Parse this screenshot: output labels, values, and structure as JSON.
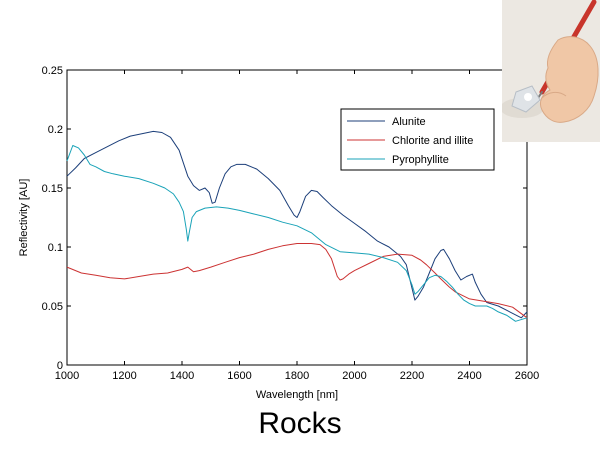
{
  "caption": "Rocks",
  "photo": {
    "icon": "hand-holding-pen-icon",
    "colors": {
      "background": "#ece8e2",
      "skin": "#f0c7a6",
      "pen": "#c8352b",
      "sample": "#dfe3e7"
    }
  },
  "chart_data": {
    "type": "line",
    "title": "",
    "xlabel": "Wavelength [nm]",
    "ylabel": "Reflectivity [AU]",
    "xlim": [
      1000,
      2600
    ],
    "ylim": [
      0,
      0.25
    ],
    "xticks": [
      1000,
      1200,
      1400,
      1600,
      1800,
      2000,
      2200,
      2400,
      2600
    ],
    "yticks": [
      0,
      0.05,
      0.1,
      0.15,
      0.2,
      0.25
    ],
    "yticklabels": [
      "0",
      "0.05",
      "0.1",
      "0.15",
      "0.2",
      "0.25"
    ],
    "grid": false,
    "legend_position": "top-right",
    "series": [
      {
        "name": "Alunite",
        "color": "#1c3f7a",
        "x": [
          1000,
          1030,
          1060,
          1100,
          1140,
          1180,
          1220,
          1260,
          1300,
          1330,
          1360,
          1390,
          1420,
          1440,
          1460,
          1480,
          1495,
          1505,
          1515,
          1530,
          1550,
          1570,
          1590,
          1620,
          1660,
          1700,
          1740,
          1770,
          1790,
          1800,
          1810,
          1830,
          1850,
          1870,
          1890,
          1920,
          1960,
          2000,
          2040,
          2080,
          2120,
          2160,
          2180,
          2200,
          2210,
          2220,
          2240,
          2260,
          2280,
          2300,
          2310,
          2330,
          2350,
          2370,
          2390,
          2410,
          2420,
          2440,
          2460,
          2500,
          2540,
          2580,
          2600
        ],
        "y": [
          0.16,
          0.167,
          0.175,
          0.18,
          0.185,
          0.19,
          0.194,
          0.196,
          0.198,
          0.197,
          0.193,
          0.182,
          0.16,
          0.152,
          0.148,
          0.15,
          0.146,
          0.137,
          0.138,
          0.15,
          0.162,
          0.168,
          0.17,
          0.17,
          0.166,
          0.158,
          0.148,
          0.135,
          0.127,
          0.125,
          0.13,
          0.143,
          0.148,
          0.147,
          0.142,
          0.135,
          0.127,
          0.12,
          0.113,
          0.105,
          0.1,
          0.092,
          0.085,
          0.065,
          0.055,
          0.058,
          0.066,
          0.078,
          0.09,
          0.097,
          0.098,
          0.09,
          0.08,
          0.072,
          0.075,
          0.077,
          0.07,
          0.06,
          0.053,
          0.05,
          0.045,
          0.04,
          0.045
        ]
      },
      {
        "name": "Chlorite and illite",
        "color": "#cc3333",
        "x": [
          1000,
          1050,
          1100,
          1150,
          1200,
          1250,
          1300,
          1350,
          1400,
          1420,
          1440,
          1460,
          1500,
          1550,
          1600,
          1650,
          1700,
          1750,
          1800,
          1850,
          1880,
          1900,
          1920,
          1940,
          1950,
          1960,
          1980,
          2000,
          2050,
          2100,
          2150,
          2200,
          2230,
          2250,
          2280,
          2300,
          2330,
          2350,
          2400,
          2450,
          2500,
          2550,
          2600
        ],
        "y": [
          0.083,
          0.078,
          0.076,
          0.074,
          0.073,
          0.075,
          0.077,
          0.078,
          0.081,
          0.083,
          0.079,
          0.08,
          0.083,
          0.087,
          0.091,
          0.094,
          0.098,
          0.101,
          0.103,
          0.103,
          0.102,
          0.098,
          0.09,
          0.075,
          0.072,
          0.073,
          0.077,
          0.08,
          0.086,
          0.092,
          0.094,
          0.093,
          0.089,
          0.085,
          0.078,
          0.073,
          0.066,
          0.062,
          0.056,
          0.054,
          0.052,
          0.049,
          0.04
        ]
      },
      {
        "name": "Pyrophyllite",
        "color": "#1aa3b8",
        "x": [
          1000,
          1020,
          1040,
          1060,
          1080,
          1100,
          1130,
          1160,
          1200,
          1250,
          1300,
          1340,
          1370,
          1390,
          1405,
          1415,
          1420,
          1425,
          1435,
          1450,
          1480,
          1520,
          1560,
          1600,
          1650,
          1700,
          1750,
          1800,
          1850,
          1900,
          1950,
          2000,
          2050,
          2100,
          2150,
          2180,
          2200,
          2210,
          2220,
          2240,
          2260,
          2280,
          2300,
          2320,
          2340,
          2360,
          2380,
          2400,
          2420,
          2440,
          2460,
          2480,
          2500,
          2530,
          2560,
          2600
        ],
        "y": [
          0.173,
          0.186,
          0.184,
          0.178,
          0.17,
          0.168,
          0.164,
          0.162,
          0.16,
          0.158,
          0.154,
          0.15,
          0.145,
          0.138,
          0.13,
          0.115,
          0.105,
          0.112,
          0.125,
          0.13,
          0.133,
          0.134,
          0.133,
          0.131,
          0.128,
          0.125,
          0.121,
          0.118,
          0.112,
          0.102,
          0.096,
          0.095,
          0.094,
          0.091,
          0.087,
          0.08,
          0.068,
          0.06,
          0.062,
          0.068,
          0.074,
          0.076,
          0.075,
          0.071,
          0.066,
          0.06,
          0.055,
          0.052,
          0.05,
          0.05,
          0.05,
          0.048,
          0.045,
          0.042,
          0.037,
          0.04
        ]
      }
    ]
  }
}
